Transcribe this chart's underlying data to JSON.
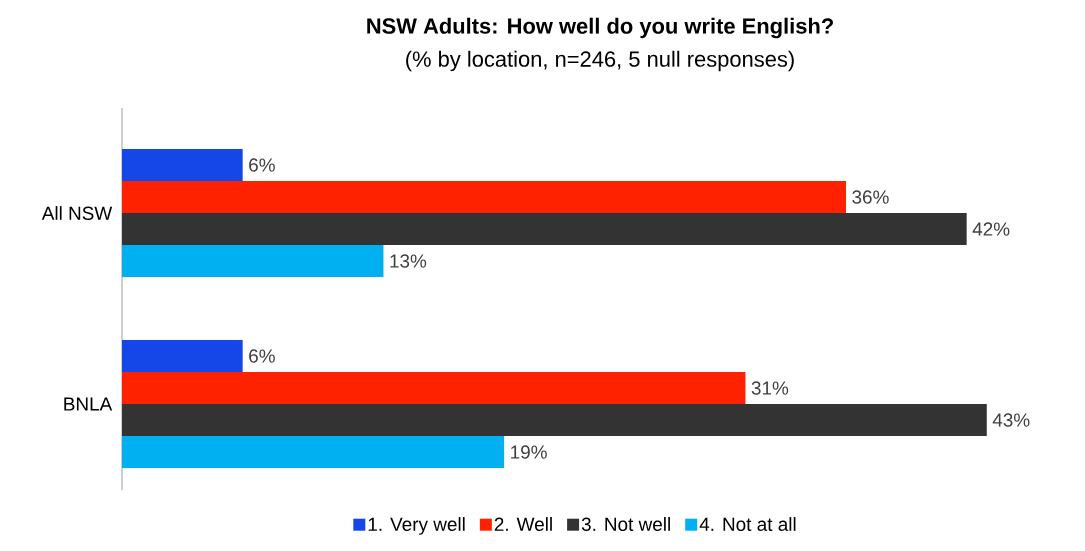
{
  "chart_data": {
    "type": "bar",
    "orientation": "horizontal",
    "title": "NSW Adults: How well do you write English?",
    "subtitle": "(% by location, n=246, 5 null responses)",
    "categories": [
      "All NSW",
      "BNLA"
    ],
    "series": [
      {
        "name": "1. Very well",
        "color": "#1446e8",
        "values": [
          6,
          6
        ],
        "value_labels": [
          "6%",
          "6%"
        ]
      },
      {
        "name": "2. Well",
        "color": "#ff2200",
        "values": [
          36,
          31
        ],
        "value_labels": [
          "36%",
          "31%"
        ]
      },
      {
        "name": "3. Not well",
        "color": "#333333",
        "values": [
          42,
          43
        ],
        "value_labels": [
          "42%",
          "43%"
        ]
      },
      {
        "name": "4. Not at all",
        "color": "#00b0f0",
        "values": [
          13,
          19
        ],
        "value_labels": [
          "13%",
          "19%"
        ]
      }
    ],
    "legend": "bottom"
  }
}
